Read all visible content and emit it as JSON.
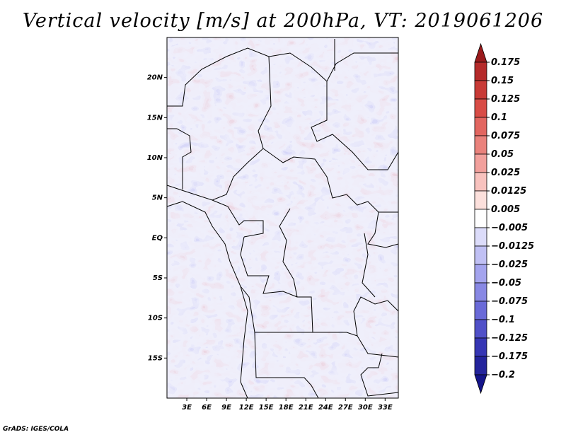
{
  "title": "Vertical velocity [m/s] at 200hPa, VT: 2019061206",
  "credit": "GrADS: IGES/COLA",
  "map": {
    "lon_range": [
      0,
      35
    ],
    "lat_range": [
      -20,
      25
    ],
    "lon_ticks": [
      {
        "value": 3,
        "label": "3E"
      },
      {
        "value": 6,
        "label": "6E"
      },
      {
        "value": 9,
        "label": "9E"
      },
      {
        "value": 12,
        "label": "12E"
      },
      {
        "value": 15,
        "label": "15E"
      },
      {
        "value": 18,
        "label": "18E"
      },
      {
        "value": 21,
        "label": "21E"
      },
      {
        "value": 24,
        "label": "24E"
      },
      {
        "value": 27,
        "label": "27E"
      },
      {
        "value": 30,
        "label": "30E"
      },
      {
        "value": 33,
        "label": "33E"
      }
    ],
    "lat_ticks": [
      {
        "value": 20,
        "label": "20N"
      },
      {
        "value": 15,
        "label": "15N"
      },
      {
        "value": 10,
        "label": "10N"
      },
      {
        "value": 5,
        "label": "5N"
      },
      {
        "value": 0,
        "label": "EQ"
      },
      {
        "value": -5,
        "label": "5S"
      },
      {
        "value": -10,
        "label": "10S"
      },
      {
        "value": -15,
        "label": "15S"
      }
    ]
  },
  "colorbar": {
    "labels": [
      "0.175",
      "0.15",
      "0.125",
      "0.1",
      "0.075",
      "0.05",
      "0.025",
      "0.0125",
      "0.005",
      "−0.005",
      "−0.0125",
      "−0.025",
      "−0.05",
      "−0.075",
      "−0.1",
      "−0.125",
      "−0.175",
      "−0.2"
    ],
    "colors": [
      "#9a1a1c",
      "#b52a2a",
      "#c83a36",
      "#d84c46",
      "#e26660",
      "#ea827c",
      "#f2a09c",
      "#f8c2be",
      "#fce0dc",
      "#ffffff",
      "#dcdcfa",
      "#c0c0f4",
      "#a4a4ee",
      "#8888e4",
      "#6a6ad8",
      "#5050c8",
      "#3636b4",
      "#24249c",
      "#14148a"
    ]
  }
}
